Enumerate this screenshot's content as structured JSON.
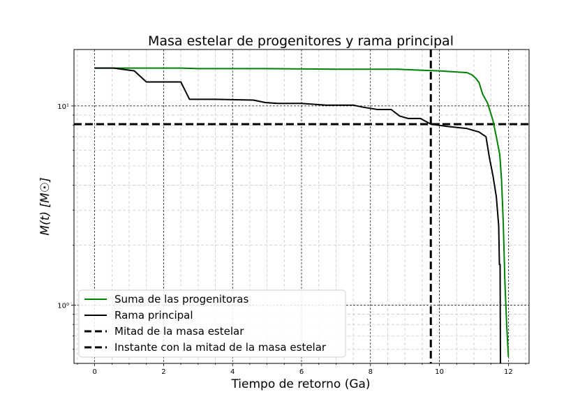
{
  "chart_data": {
    "type": "line",
    "title": "Masa estelar de progenitores y rama principal",
    "xlabel": "Tiempo de retorno (Ga)",
    "ylabel": "M(t) [M☉]",
    "xlim": [
      -0.6,
      12.6
    ],
    "ylim": [
      0.51,
      19.2
    ],
    "yscale": "log",
    "grid": "major+minor, dashed",
    "x_ticks": [
      0,
      2,
      4,
      6,
      8,
      10,
      12
    ],
    "y_ticks": [
      {
        "value": 1,
        "label": "10⁰"
      },
      {
        "value": 10,
        "label": "10¹"
      }
    ],
    "legend_position": "lower-left",
    "series": [
      {
        "name": "Suma de las progenitoras",
        "color": "#008000",
        "style": "solid",
        "x": [
          0,
          0.5,
          1.0,
          2.5,
          3.0,
          5.0,
          7.0,
          8.8,
          9.5,
          10.0,
          10.5,
          10.8,
          10.95,
          11.05,
          11.15,
          11.25,
          11.4,
          11.55,
          11.65,
          11.75,
          11.8,
          11.85,
          11.9,
          11.95,
          12.0
        ],
        "y": [
          15.5,
          15.5,
          15.5,
          15.5,
          15.4,
          15.4,
          15.3,
          15.3,
          15.1,
          15.0,
          14.8,
          14.7,
          14.3,
          13.8,
          13.1,
          11.5,
          10.3,
          8.5,
          7.0,
          5.7,
          4.3,
          2.6,
          1.3,
          0.8,
          0.55
        ]
      },
      {
        "name": "Rama principal",
        "color": "#000000",
        "style": "solid",
        "x": [
          0,
          0.55,
          1.15,
          1.5,
          2.5,
          2.75,
          3.0,
          3.5,
          4.6,
          4.95,
          5.3,
          6.0,
          6.7,
          7.5,
          7.8,
          8.2,
          8.6,
          8.85,
          9.1,
          9.45,
          9.75,
          10.2,
          10.8,
          11.15,
          11.35,
          11.45,
          11.55,
          11.65,
          11.72,
          11.74,
          11.76,
          11.77
        ],
        "y": [
          15.5,
          15.5,
          15.0,
          13.2,
          13.2,
          10.8,
          10.8,
          10.8,
          10.7,
          10.4,
          10.3,
          10.3,
          10.1,
          10.1,
          9.85,
          9.6,
          9.6,
          8.9,
          8.65,
          8.65,
          8.1,
          7.9,
          7.7,
          7.4,
          7.0,
          5.5,
          4.5,
          3.5,
          2.5,
          1.6,
          1.6,
          0.5
        ]
      },
      {
        "name": "Mitad de la masa estelar",
        "color": "#000000",
        "style": "dashed",
        "orientation": "horizontal",
        "y_value": 8.1
      },
      {
        "name": "Instante con la mitad de la masa estelar",
        "color": "#000000",
        "style": "dashed",
        "orientation": "vertical",
        "x_value": 9.75
      }
    ]
  }
}
